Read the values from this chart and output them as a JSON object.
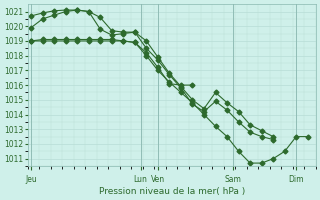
{
  "xlabel": "Pression niveau de la mer( hPa )",
  "ylim": [
    1010.5,
    1021.5
  ],
  "yticks": [
    1011,
    1012,
    1013,
    1014,
    1015,
    1016,
    1017,
    1018,
    1019,
    1020,
    1021
  ],
  "xtick_labels": [
    "Jeu",
    "Lun",
    "Ven",
    "Sam",
    "Dim"
  ],
  "line_color": "#2d6a2d",
  "bg_color": "#cff0ea",
  "grid_major_color": "#b8ddd6",
  "grid_minor_color": "#d8eee9",
  "line1_x": [
    0,
    1,
    2,
    3,
    4,
    5,
    6,
    7,
    8,
    9,
    10,
    11,
    12,
    13,
    14
  ],
  "line1_y": [
    1019.0,
    1019.1,
    1019.1,
    1019.1,
    1019.1,
    1019.1,
    1019.1,
    1019.1,
    1019.0,
    1018.9,
    1018.2,
    1017.2,
    1016.1,
    1016.0,
    1016.0
  ],
  "line2_x": [
    0,
    1,
    2,
    3,
    4,
    5,
    6,
    7,
    8,
    9,
    10,
    11,
    12,
    13,
    14,
    15,
    16,
    17,
    18,
    19,
    20,
    21
  ],
  "line2_y": [
    1020.7,
    1020.9,
    1021.05,
    1021.1,
    1021.1,
    1021.0,
    1019.8,
    1019.4,
    1019.5,
    1019.6,
    1019.0,
    1017.9,
    1016.8,
    1015.9,
    1015.0,
    1014.4,
    1015.5,
    1014.8,
    1014.2,
    1013.3,
    1012.9,
    1012.5
  ],
  "line3_x": [
    0,
    1,
    2,
    3,
    4,
    5,
    6,
    7,
    8,
    9,
    10,
    11,
    12,
    13,
    14,
    15,
    16,
    17,
    18,
    19,
    20,
    21
  ],
  "line3_y": [
    1019.9,
    1020.5,
    1020.75,
    1021.0,
    1021.1,
    1021.0,
    1020.6,
    1019.7,
    1019.6,
    1019.6,
    1018.5,
    1017.7,
    1016.7,
    1015.8,
    1014.7,
    1014.2,
    1014.9,
    1014.3,
    1013.5,
    1012.8,
    1012.5,
    1012.3
  ],
  "line4_x": [
    0,
    1,
    2,
    3,
    4,
    5,
    6,
    7,
    8,
    9,
    10,
    11,
    12,
    13,
    14,
    15,
    16,
    17,
    18,
    19,
    20,
    21,
    22,
    23,
    24
  ],
  "line4_y": [
    1019.0,
    1019.0,
    1019.0,
    1019.0,
    1019.0,
    1019.0,
    1019.0,
    1019.0,
    1019.0,
    1018.9,
    1018.0,
    1017.0,
    1016.2,
    1015.5,
    1014.8,
    1014.0,
    1013.2,
    1012.5,
    1011.5,
    1010.7,
    1010.7,
    1011.0,
    1011.5,
    1012.5,
    1012.5
  ],
  "xtick_x": [
    0,
    9.5,
    11,
    17.5,
    23
  ],
  "xlim": [
    -0.3,
    24.5
  ],
  "vlines": [
    0,
    9.5,
    11,
    17.5,
    23
  ]
}
